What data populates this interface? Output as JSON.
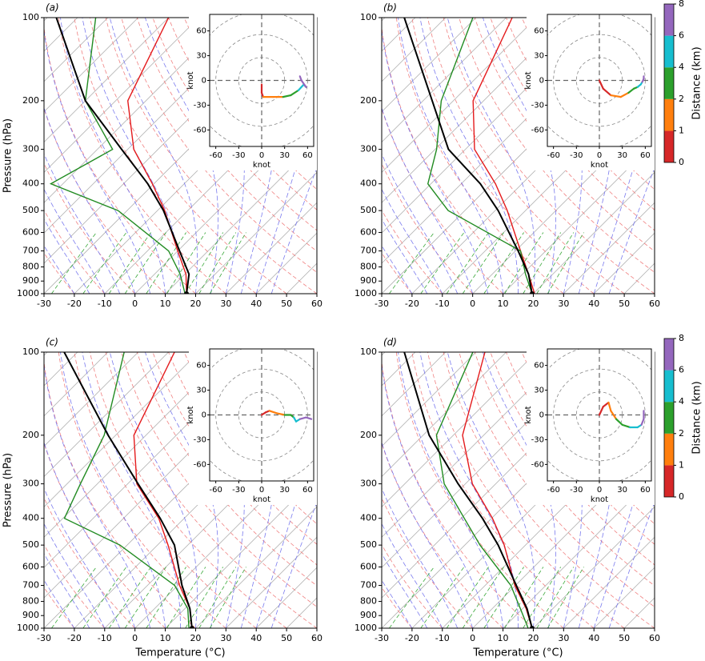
{
  "chart_data": [
    {
      "type": "skewt",
      "label": "(a)",
      "ylabel": "Pressure (hPa)",
      "xlim": [
        -30,
        60
      ],
      "xticks": [
        -30,
        -20,
        -10,
        0,
        10,
        20,
        30,
        40,
        50,
        60
      ],
      "ylim": [
        1000,
        100
      ],
      "yticks": [
        1000,
        900,
        800,
        700,
        600,
        500,
        400,
        300,
        200,
        100
      ],
      "log_y": true,
      "pressure": [
        1000,
        850,
        700,
        500,
        400,
        300,
        200,
        100
      ],
      "series": [
        {
          "color": "#e41a1c",
          "values": [
            17,
            10.4,
            0,
            -17.6,
            -30.5,
            -48,
            -66,
            -80
          ]
        },
        {
          "color": "#228b22",
          "values": [
            16.5,
            8.5,
            -3,
            -33,
            -64,
            -55,
            -80,
            -104
          ]
        },
        {
          "color": "#000000",
          "values": [
            17,
            11.4,
            0.6,
            -18,
            -32,
            -52,
            -80,
            -117
          ]
        }
      ],
      "inset": {
        "xlabel": "knot",
        "ylabel": "knot",
        "xlim": [
          -68,
          68
        ],
        "ylim": [
          -80,
          80
        ],
        "xticks": [
          -60,
          -30,
          0,
          30,
          60
        ],
        "yticks": [
          -60,
          -30,
          0,
          30,
          60
        ],
        "height": [
          0,
          0.5,
          1,
          1.5,
          2,
          3,
          4,
          5,
          6,
          7,
          8
        ],
        "u": [
          0,
          0,
          2,
          15,
          28,
          38,
          48,
          55,
          58,
          52,
          50
        ],
        "v": [
          -5,
          -15,
          -20,
          -20,
          -20,
          -18,
          -12,
          -5,
          -8,
          0,
          5
        ]
      }
    },
    {
      "type": "skewt",
      "label": "(b)",
      "xlim": [
        -30,
        60
      ],
      "xticks": [
        -30,
        -20,
        -10,
        0,
        10,
        20,
        30,
        40,
        50,
        60
      ],
      "ylim": [
        1000,
        100
      ],
      "yticks": [
        1000,
        900,
        800,
        700,
        600,
        500,
        400,
        300,
        200,
        100
      ],
      "log_y": true,
      "pressure": [
        1000,
        850,
        700,
        500,
        400,
        300,
        200,
        100
      ],
      "series": [
        {
          "color": "#e41a1c",
          "values": [
            20.4,
            12,
            1.7,
            -16,
            -28.7,
            -47,
            -63.5,
            -78
          ]
        },
        {
          "color": "#228b22",
          "values": [
            19.6,
            11,
            1.7,
            -35.5,
            -51,
            -59.5,
            -74,
            -91
          ]
        },
        {
          "color": "#000000",
          "values": [
            19.6,
            12,
            0.9,
            -19,
            -33.7,
            -55.6,
            -77,
            -113.6
          ]
        }
      ],
      "inset": {
        "xlabel": "knot",
        "ylabel": "knot",
        "xlim": [
          -68,
          68
        ],
        "ylim": [
          -80,
          80
        ],
        "xticks": [
          -60,
          -30,
          0,
          30,
          60
        ],
        "yticks": [
          -60,
          -30,
          0,
          30,
          60
        ],
        "height": [
          0,
          0.5,
          1,
          1.5,
          2,
          3,
          4,
          5,
          6,
          7,
          8
        ],
        "u": [
          0,
          5,
          15,
          28,
          38,
          45,
          50,
          54,
          56,
          58,
          58
        ],
        "v": [
          0,
          -10,
          -18,
          -20,
          -15,
          -10,
          -8,
          -5,
          -2,
          2,
          5
        ]
      },
      "colorbar": {
        "label": "Distance (km)",
        "ticks": [
          0,
          1,
          2,
          4,
          6,
          8
        ],
        "colors": [
          "#d62728",
          "#ff7f0e",
          "#2ca02c",
          "#17becf",
          "#9467bd"
        ]
      }
    },
    {
      "type": "skewt",
      "label": "(c)",
      "ylabel": "Pressure (hPa)",
      "xlabel": "Temperature (°C)",
      "xlim": [
        -30,
        60
      ],
      "xticks": [
        -30,
        -20,
        -10,
        0,
        10,
        20,
        30,
        40,
        50,
        60
      ],
      "ylim": [
        1000,
        100
      ],
      "yticks": [
        1000,
        900,
        800,
        700,
        600,
        500,
        400,
        300,
        200,
        100
      ],
      "log_y": true,
      "pressure": [
        1000,
        850,
        700,
        500,
        400,
        300,
        200,
        100
      ],
      "series": [
        {
          "color": "#e41a1c",
          "values": [
            18.8,
            11.7,
            0.6,
            -16.5,
            -28.4,
            -47,
            -64,
            -78
          ]
        },
        {
          "color": "#228b22",
          "values": [
            17.8,
            11,
            -1,
            -32.4,
            -59.5,
            -65.6,
            -73.8,
            -94.6
          ]
        },
        {
          "color": "#000000",
          "values": [
            18.8,
            11.7,
            1.4,
            -14.4,
            -27.9,
            -46.6,
            -72.5,
            -114.4
          ]
        }
      ],
      "inset": {
        "xlabel": "knot",
        "ylabel": "knot",
        "xlim": [
          -68,
          68
        ],
        "ylim": [
          -80,
          80
        ],
        "xticks": [
          -60,
          -30,
          0,
          30,
          60
        ],
        "yticks": [
          -60,
          -30,
          0,
          30,
          60
        ],
        "height": [
          0,
          0.5,
          1,
          1.5,
          2,
          3,
          4,
          5,
          6,
          7,
          8
        ],
        "u": [
          0,
          5,
          10,
          20,
          30,
          38,
          42,
          45,
          50,
          58,
          65
        ],
        "v": [
          0,
          3,
          5,
          2,
          0,
          0,
          -3,
          -8,
          -5,
          -3,
          -5
        ]
      }
    },
    {
      "type": "skewt",
      "label": "(d)",
      "xlabel": "Temperature (°C)",
      "xlim": [
        -30,
        60
      ],
      "xticks": [
        -30,
        -20,
        -10,
        0,
        10,
        20,
        30,
        40,
        50,
        60
      ],
      "ylim": [
        1000,
        100
      ],
      "yticks": [
        1000,
        900,
        800,
        700,
        600,
        500,
        400,
        300,
        200,
        100
      ],
      "log_y": true,
      "pressure": [
        1000,
        850,
        700,
        500,
        400,
        300,
        200,
        100
      ],
      "series": [
        {
          "color": "#e41a1c",
          "values": [
            19.6,
            11.2,
            -0.2,
            -17,
            -29.7,
            -47.7,
            -67,
            -87
          ]
        },
        {
          "color": "#228b22",
          "values": [
            18.3,
            9.3,
            -1.5,
            -25,
            -39,
            -57,
            -75.6,
            -91
          ]
        },
        {
          "color": "#000000",
          "values": [
            19.6,
            11.5,
            0.3,
            -19,
            -33,
            -52.4,
            -78,
            -113.6
          ]
        }
      ],
      "inset": {
        "xlabel": "knot",
        "ylabel": "knot",
        "xlim": [
          -68,
          68
        ],
        "ylim": [
          -80,
          80
        ],
        "xticks": [
          -60,
          -30,
          0,
          30,
          60
        ],
        "yticks": [
          -60,
          -30,
          0,
          30,
          60
        ],
        "height": [
          0,
          0.5,
          1,
          1.5,
          2,
          3,
          4,
          5,
          6,
          7,
          8
        ],
        "u": [
          0,
          5,
          12,
          15,
          22,
          30,
          40,
          50,
          55,
          58,
          58
        ],
        "v": [
          0,
          10,
          15,
          5,
          -5,
          -12,
          -15,
          -15,
          -12,
          -5,
          5
        ]
      },
      "colorbar": {
        "label": "Distance (km)",
        "ticks": [
          0,
          1,
          2,
          4,
          6,
          8
        ],
        "colors": [
          "#d62728",
          "#ff7f0e",
          "#2ca02c",
          "#17becf",
          "#9467bd"
        ]
      }
    }
  ]
}
